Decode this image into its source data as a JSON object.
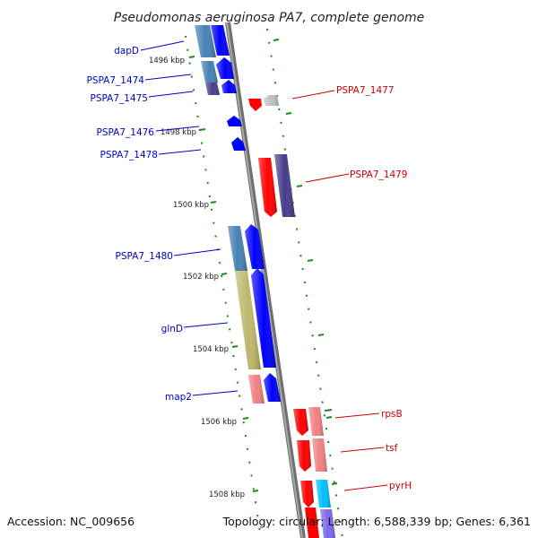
{
  "title": "Pseudomonas aeruginosa PA7, complete genome",
  "footer": {
    "accession": "Accession: NC_009656",
    "topology": "Topology: circular; Length: 6,588,339 bp; Genes: 6,361"
  },
  "colors": {
    "backbone": "#8a8a8a",
    "tick": "#1a8a1a",
    "label_left": "#0000cc",
    "label_right": "#cc0000",
    "blue": "#0000ff",
    "dark_purple": "#483d8b",
    "steel_blue": "#4682b4",
    "khaki": "#bdb76b",
    "red": "#ff0000",
    "salmon": "#f08080",
    "light_gray": "#c0c0c0",
    "cyan": "#00bfff"
  },
  "ticks": [
    "1496 kbp",
    "1498 kbp",
    "1500 kbp",
    "1502 kbp",
    "1504 kbp",
    "1506 kbp",
    "1508 kbp"
  ],
  "labels_left": [
    "dapD",
    "PSPA7_1474",
    "PSPA7_1475",
    "PSPA7_1476",
    "PSPA7_1478",
    "PSPA7_1480",
    "glnD",
    "map2"
  ],
  "labels_right": [
    "PSPA7_1477",
    "PSPA7_1479",
    "rpsB",
    "tsf",
    "pyrH"
  ]
}
